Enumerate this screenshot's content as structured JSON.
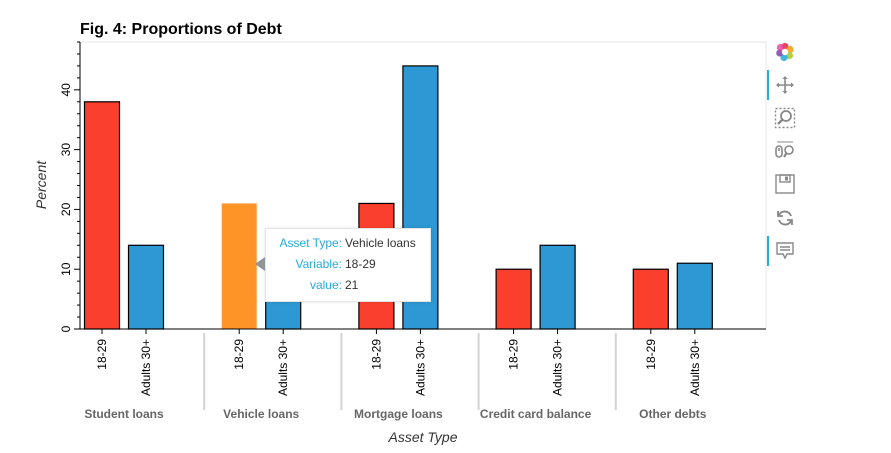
{
  "chart_data": {
    "type": "bar",
    "title": "Fig. 4: Proportions of Debt",
    "xlabel": "Asset Type",
    "ylabel": "Percent",
    "ylim": [
      0,
      48
    ],
    "yticks": [
      0,
      10,
      20,
      30,
      40
    ],
    "groups": [
      "Student loans",
      "Vehicle loans",
      "Mortgage loans",
      "Credit card balance",
      "Other debts"
    ],
    "variables": [
      "18-29",
      "Adults 30+"
    ],
    "series": [
      {
        "name": "18-29",
        "color": "#fa3f2d",
        "values": [
          38,
          21,
          21,
          10,
          10
        ]
      },
      {
        "name": "Adults 30+",
        "color": "#2d98d3",
        "values": [
          14,
          15,
          44,
          14,
          11
        ]
      }
    ],
    "highlight": {
      "group_index": 1,
      "series_index": 0,
      "color": "#fe9327"
    },
    "grid": false,
    "legend": "none"
  },
  "tooltip": {
    "rows": [
      {
        "key": "Asset Type:",
        "value": "Vehicle loans"
      },
      {
        "key": "Variable:",
        "value": "18-29"
      },
      {
        "key": "value:",
        "value": "21"
      }
    ]
  },
  "toolbar": {
    "tools": [
      "bokeh-logo-icon",
      "pan-icon",
      "box-zoom-icon",
      "wheel-zoom-icon",
      "save-icon",
      "reset-icon",
      "hover-icon"
    ]
  }
}
